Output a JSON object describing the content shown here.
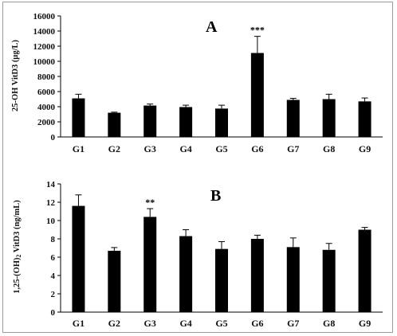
{
  "chart_data": [
    {
      "type": "bar",
      "panel_label": "A",
      "ylabel": "25-OH VitD3 (µg/L)",
      "categories": [
        "G1",
        "G2",
        "G3",
        "G4",
        "G5",
        "G6",
        "G7",
        "G8",
        "G9"
      ],
      "values": [
        5100,
        3200,
        4150,
        3950,
        3750,
        11100,
        4900,
        5000,
        4700
      ],
      "errors": [
        550,
        80,
        200,
        250,
        450,
        2200,
        200,
        650,
        450
      ],
      "significance": [
        "",
        "",
        "",
        "",
        "",
        "***",
        "",
        "",
        ""
      ],
      "ylim": [
        0,
        16000
      ],
      "yticks": [
        "0",
        "2000",
        "4000",
        "6000",
        "8000",
        "10000",
        "12000",
        "14000",
        "16000"
      ],
      "bar_color": "#000000",
      "grid": false
    },
    {
      "type": "bar",
      "panel_label": "B",
      "ylabel": "1,25-(OH)2 VitD3 (ng/mL)",
      "categories": [
        "G1",
        "G2",
        "G3",
        "G4",
        "G5",
        "G6",
        "G7",
        "G8",
        "G9"
      ],
      "values": [
        11.6,
        6.7,
        10.4,
        8.3,
        6.9,
        8.0,
        7.1,
        6.8,
        9.0
      ],
      "errors": [
        1.2,
        0.35,
        0.9,
        0.7,
        0.8,
        0.4,
        1.0,
        0.7,
        0.25
      ],
      "significance": [
        "",
        "",
        "**",
        "",
        "",
        "",
        "",
        "",
        ""
      ],
      "ylim": [
        0,
        14
      ],
      "yticks": [
        "0",
        "2",
        "4",
        "6",
        "8",
        "10",
        "12",
        "14"
      ],
      "bar_color": "#000000",
      "grid": false
    }
  ]
}
